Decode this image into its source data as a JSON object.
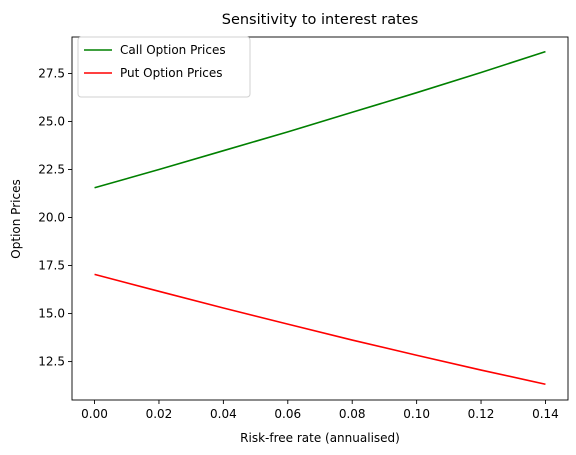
{
  "chart_data": {
    "type": "line",
    "title": "Sensitivity to interest rates",
    "xlabel": "Risk-free rate (annualised)",
    "ylabel": "Option Prices",
    "xlim": [
      -0.007,
      0.147
    ],
    "ylim": [
      10.5,
      29.4
    ],
    "x_ticks": [
      0.0,
      0.02,
      0.04,
      0.06,
      0.08,
      0.1,
      0.12,
      0.14
    ],
    "x_tick_labels": [
      "0.00",
      "0.02",
      "0.04",
      "0.06",
      "0.08",
      "0.10",
      "0.12",
      "0.14"
    ],
    "y_ticks": [
      12.5,
      15.0,
      17.5,
      20.0,
      22.5,
      25.0,
      27.5
    ],
    "y_tick_labels": [
      "12.5",
      "15.0",
      "17.5",
      "20.0",
      "22.5",
      "25.0",
      "27.5"
    ],
    "grid": false,
    "legend_position": "top-left",
    "x": [
      0.0,
      0.02,
      0.04,
      0.06,
      0.08,
      0.1,
      0.12,
      0.14
    ],
    "series": [
      {
        "name": "Call Option Prices",
        "color": "#008000",
        "values": [
          21.55,
          22.5,
          23.48,
          24.46,
          25.48,
          26.5,
          27.55,
          28.64
        ]
      },
      {
        "name": "Put Option Prices",
        "color": "#ff0000",
        "values": [
          17.04,
          16.16,
          15.29,
          14.45,
          13.62,
          12.83,
          12.06,
          11.32
        ]
      }
    ]
  }
}
